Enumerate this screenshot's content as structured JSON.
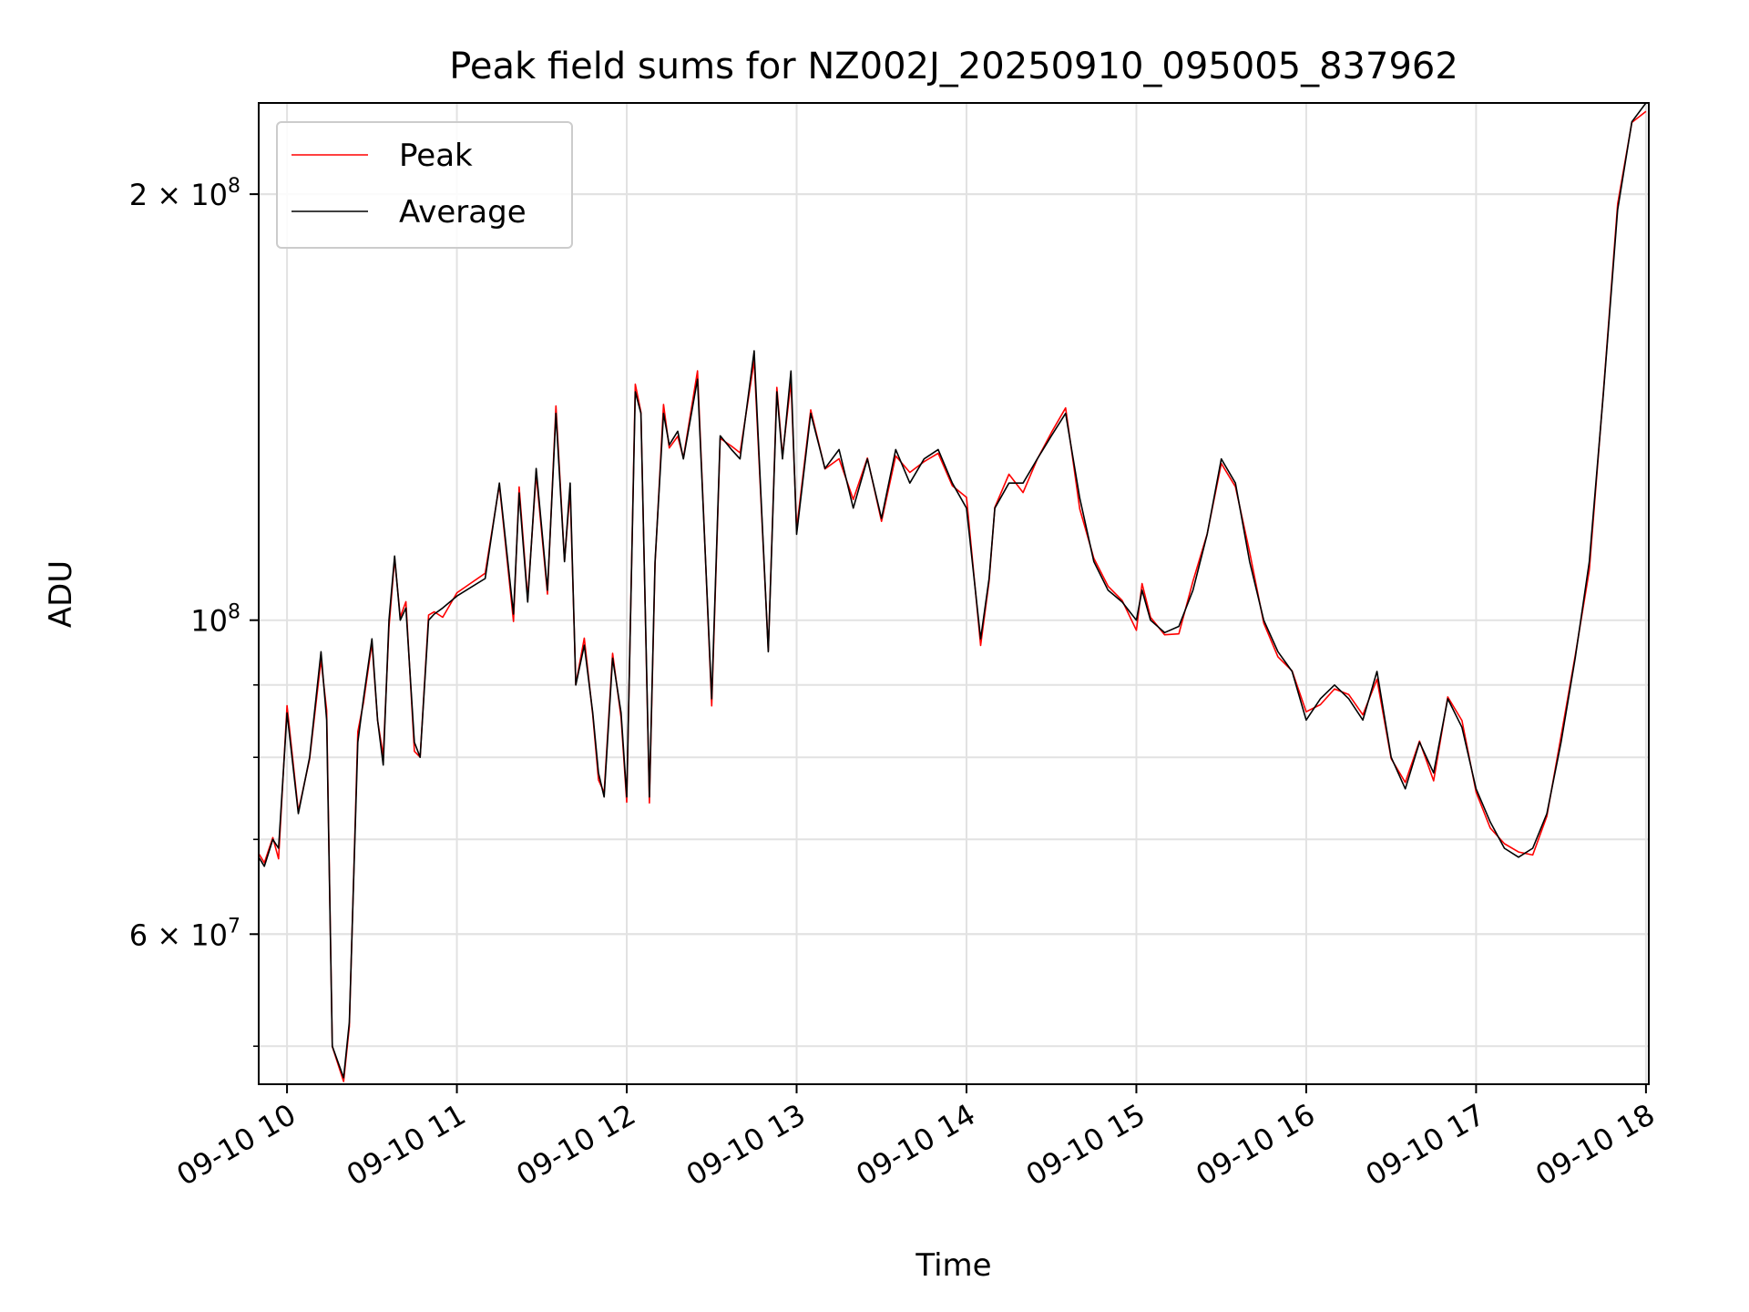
{
  "chart_data": {
    "type": "line",
    "title": "Peak field sums for NZ002J_20250910_095005_837962",
    "xlabel": "Time",
    "ylabel": "ADU",
    "yscale": "log",
    "ylim": [
      47000000,
      232000000
    ],
    "xlim": [
      "2025-09-10 09:50",
      "2025-09-10 18:01"
    ],
    "x_ticks": [
      "09-10 10",
      "09-10 11",
      "09-10 12",
      "09-10 13",
      "09-10 14",
      "09-10 15",
      "09-10 16",
      "09-10 17",
      "09-10 18"
    ],
    "y_major_labels": [
      {
        "value": 100000000,
        "base": "10",
        "exp": "8",
        "mult": ""
      },
      {
        "value": 200000000,
        "base": "10",
        "exp": "8",
        "mult": "2 × "
      },
      {
        "value": 60000000,
        "base": "10",
        "exp": "7",
        "mult": "6 × "
      }
    ],
    "y_minor_ticks": [
      50000000,
      60000000,
      70000000,
      80000000,
      90000000,
      200000000
    ],
    "grid": true,
    "legend_position": "top-left",
    "series": [
      {
        "name": "Peak",
        "color": "#ff0000"
      },
      {
        "name": "Average",
        "color": "#000000"
      }
    ],
    "x": [
      "09:50",
      "09:52",
      "09:55",
      "09:57",
      "10:00",
      "10:04",
      "10:08",
      "10:12",
      "10:14",
      "10:16",
      "10:20",
      "10:22",
      "10:25",
      "10:27",
      "10:30",
      "10:32",
      "10:34",
      "10:36",
      "10:38",
      "10:40",
      "10:42",
      "10:45",
      "10:47",
      "10:50",
      "10:52",
      "10:55",
      "11:00",
      "11:10",
      "11:15",
      "11:20",
      "11:22",
      "11:25",
      "11:28",
      "11:32",
      "11:35",
      "11:38",
      "11:40",
      "11:42",
      "11:45",
      "11:48",
      "11:50",
      "11:52",
      "11:55",
      "11:58",
      "12:00",
      "12:03",
      "12:05",
      "12:08",
      "12:10",
      "12:13",
      "12:15",
      "12:18",
      "12:20",
      "12:25",
      "12:30",
      "12:33",
      "12:37",
      "12:40",
      "12:45",
      "12:50",
      "12:53",
      "12:55",
      "12:58",
      "13:00",
      "13:05",
      "13:10",
      "13:15",
      "13:20",
      "13:25",
      "13:30",
      "13:35",
      "13:40",
      "13:45",
      "13:50",
      "13:55",
      "14:00",
      "14:05",
      "14:08",
      "14:10",
      "14:15",
      "14:20",
      "14:25",
      "14:30",
      "14:35",
      "14:40",
      "14:45",
      "14:50",
      "14:55",
      "15:00",
      "15:02",
      "15:05",
      "15:10",
      "15:15",
      "15:20",
      "15:25",
      "15:30",
      "15:35",
      "15:40",
      "15:45",
      "15:50",
      "15:55",
      "16:00",
      "16:05",
      "16:10",
      "16:15",
      "16:20",
      "16:25",
      "16:30",
      "16:35",
      "16:40",
      "16:45",
      "16:50",
      "16:55",
      "17:00",
      "17:05",
      "17:10",
      "17:15",
      "17:20",
      "17:25",
      "17:30",
      "17:35",
      "17:40",
      "17:45",
      "17:50",
      "17:55",
      "18:00"
    ],
    "y_average": [
      68000000,
      67000000,
      70000000,
      69000000,
      86000000,
      73000000,
      80000000,
      95000000,
      85000000,
      50000000,
      47500000,
      52000000,
      82000000,
      88000000,
      97000000,
      85000000,
      79000000,
      100000000,
      111000000,
      100000000,
      102000000,
      82000000,
      80000000,
      100000000,
      101000000,
      102000000,
      104000000,
      107000000,
      125000000,
      101000000,
      123000000,
      103000000,
      128000000,
      105000000,
      140000000,
      110000000,
      125000000,
      90000000,
      96000000,
      86000000,
      78000000,
      75000000,
      94000000,
      86000000,
      75000000,
      145000000,
      140000000,
      75000000,
      110000000,
      140000000,
      133000000,
      136000000,
      130000000,
      148000000,
      88000000,
      135000000,
      132000000,
      130000000,
      155000000,
      95000000,
      145000000,
      130000000,
      150000000,
      115000000,
      140000000,
      128000000,
      132000000,
      120000000,
      130000000,
      118000000,
      132000000,
      125000000,
      130000000,
      132000000,
      125000000,
      120000000,
      97000000,
      107000000,
      120000000,
      125000000,
      125000000,
      130000000,
      135000000,
      140000000,
      122000000,
      110000000,
      105000000,
      103000000,
      100000000,
      105000000,
      100000000,
      98000000,
      99000000,
      105000000,
      115000000,
      130000000,
      125000000,
      110000000,
      100000000,
      95000000,
      92000000,
      85000000,
      88000000,
      90000000,
      88000000,
      85000000,
      92000000,
      80000000,
      76000000,
      82000000,
      78000000,
      88000000,
      84000000,
      76000000,
      72000000,
      69000000,
      68000000,
      69000000,
      73000000,
      82000000,
      94000000,
      110000000,
      145000000,
      195000000,
      225000000,
      232000000
    ]
  }
}
